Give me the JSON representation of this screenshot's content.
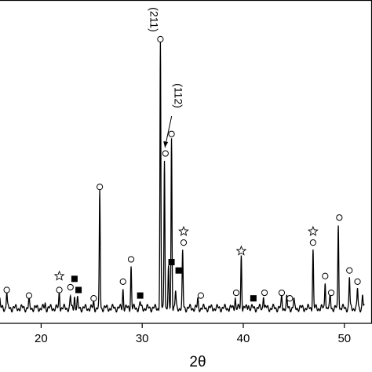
{
  "chart_data": {
    "type": "line",
    "title": "",
    "xlabel": "2θ",
    "ylabel": "",
    "xlim": [
      15,
      52
    ],
    "ylim": [
      0,
      1
    ],
    "x_ticks": [
      20,
      30,
      40,
      50
    ],
    "grid": false,
    "series": [
      {
        "peaks": [
          {
            "x": 15.9,
            "h": 0.03
          },
          {
            "x": 16.6,
            "h": 0.06
          },
          {
            "x": 18.8,
            "h": 0.03
          },
          {
            "x": 20.4,
            "h": 0.015
          },
          {
            "x": 21.8,
            "h": 0.06
          },
          {
            "x": 22.9,
            "h": 0.04
          },
          {
            "x": 23.3,
            "h": 0.045
          },
          {
            "x": 23.6,
            "h": 0.03
          },
          {
            "x": 25.2,
            "h": 0.02
          },
          {
            "x": 25.8,
            "h": 0.42
          },
          {
            "x": 28.1,
            "h": 0.07
          },
          {
            "x": 28.9,
            "h": 0.15
          },
          {
            "x": 29.8,
            "h": 0.02
          },
          {
            "x": 31.8,
            "h": 0.95
          },
          {
            "x": 32.2,
            "h": 0.54
          },
          {
            "x": 32.6,
            "h": 0.14
          },
          {
            "x": 32.9,
            "h": 0.61
          },
          {
            "x": 33.3,
            "h": 0.06
          },
          {
            "x": 34.0,
            "h": 0.2
          },
          {
            "x": 35.5,
            "h": 0.03
          },
          {
            "x": 39.2,
            "h": 0.04
          },
          {
            "x": 39.8,
            "h": 0.19
          },
          {
            "x": 40.5,
            "h": 0.015
          },
          {
            "x": 42.0,
            "h": 0.05
          },
          {
            "x": 43.8,
            "h": 0.04
          },
          {
            "x": 44.3,
            "h": 0.035
          },
          {
            "x": 45.0,
            "h": 0.03
          },
          {
            "x": 46.9,
            "h": 0.21
          },
          {
            "x": 48.1,
            "h": 0.1
          },
          {
            "x": 48.6,
            "h": 0.05
          },
          {
            "x": 49.4,
            "h": 0.3
          },
          {
            "x": 50.5,
            "h": 0.11
          },
          {
            "x": 51.3,
            "h": 0.07
          },
          {
            "x": 51.8,
            "h": 0.05
          }
        ],
        "baseline": 0.035
      }
    ],
    "markers": [
      {
        "x": 16.6,
        "level": 0.1,
        "symbol": "circle"
      },
      {
        "x": 18.8,
        "level": 0.08,
        "symbol": "circle"
      },
      {
        "x": 21.8,
        "level": 0.1,
        "symbol": "circle"
      },
      {
        "x": 21.8,
        "level": 0.15,
        "symbol": "star"
      },
      {
        "x": 22.9,
        "level": 0.11,
        "symbol": "circle"
      },
      {
        "x": 23.3,
        "level": 0.14,
        "symbol": "square"
      },
      {
        "x": 23.7,
        "level": 0.1,
        "symbol": "square"
      },
      {
        "x": 25.2,
        "level": 0.07,
        "symbol": "circle"
      },
      {
        "x": 25.8,
        "level": 0.47,
        "symbol": "circle"
      },
      {
        "x": 28.1,
        "level": 0.13,
        "symbol": "circle"
      },
      {
        "x": 28.9,
        "level": 0.21,
        "symbol": "circle"
      },
      {
        "x": 29.8,
        "level": 0.08,
        "symbol": "square"
      },
      {
        "x": 31.8,
        "level": 1.0,
        "symbol": "circle"
      },
      {
        "x": 32.3,
        "level": 0.59,
        "symbol": "circle"
      },
      {
        "x": 32.9,
        "level": 0.66,
        "symbol": "circle"
      },
      {
        "x": 32.9,
        "level": 0.2,
        "symbol": "square"
      },
      {
        "x": 33.6,
        "level": 0.17,
        "symbol": "square"
      },
      {
        "x": 34.1,
        "level": 0.27,
        "symbol": "circle"
      },
      {
        "x": 34.1,
        "level": 0.31,
        "symbol": "star"
      },
      {
        "x": 35.8,
        "level": 0.08,
        "symbol": "circle"
      },
      {
        "x": 39.3,
        "level": 0.09,
        "symbol": "circle"
      },
      {
        "x": 39.8,
        "level": 0.24,
        "symbol": "star"
      },
      {
        "x": 41.0,
        "level": 0.07,
        "symbol": "square"
      },
      {
        "x": 42.1,
        "level": 0.09,
        "symbol": "circle"
      },
      {
        "x": 43.8,
        "level": 0.09,
        "symbol": "circle"
      },
      {
        "x": 44.6,
        "level": 0.07,
        "symbol": "circle"
      },
      {
        "x": 46.9,
        "level": 0.27,
        "symbol": "circle"
      },
      {
        "x": 46.9,
        "level": 0.31,
        "symbol": "star"
      },
      {
        "x": 48.1,
        "level": 0.15,
        "symbol": "circle"
      },
      {
        "x": 48.7,
        "level": 0.09,
        "symbol": "circle"
      },
      {
        "x": 49.5,
        "level": 0.36,
        "symbol": "circle"
      },
      {
        "x": 50.5,
        "level": 0.17,
        "symbol": "circle"
      },
      {
        "x": 51.3,
        "level": 0.13,
        "symbol": "circle"
      }
    ],
    "annotations": [
      {
        "text": "(211)",
        "x": 31.8
      },
      {
        "text": "(112)",
        "x": 32.6
      }
    ]
  }
}
